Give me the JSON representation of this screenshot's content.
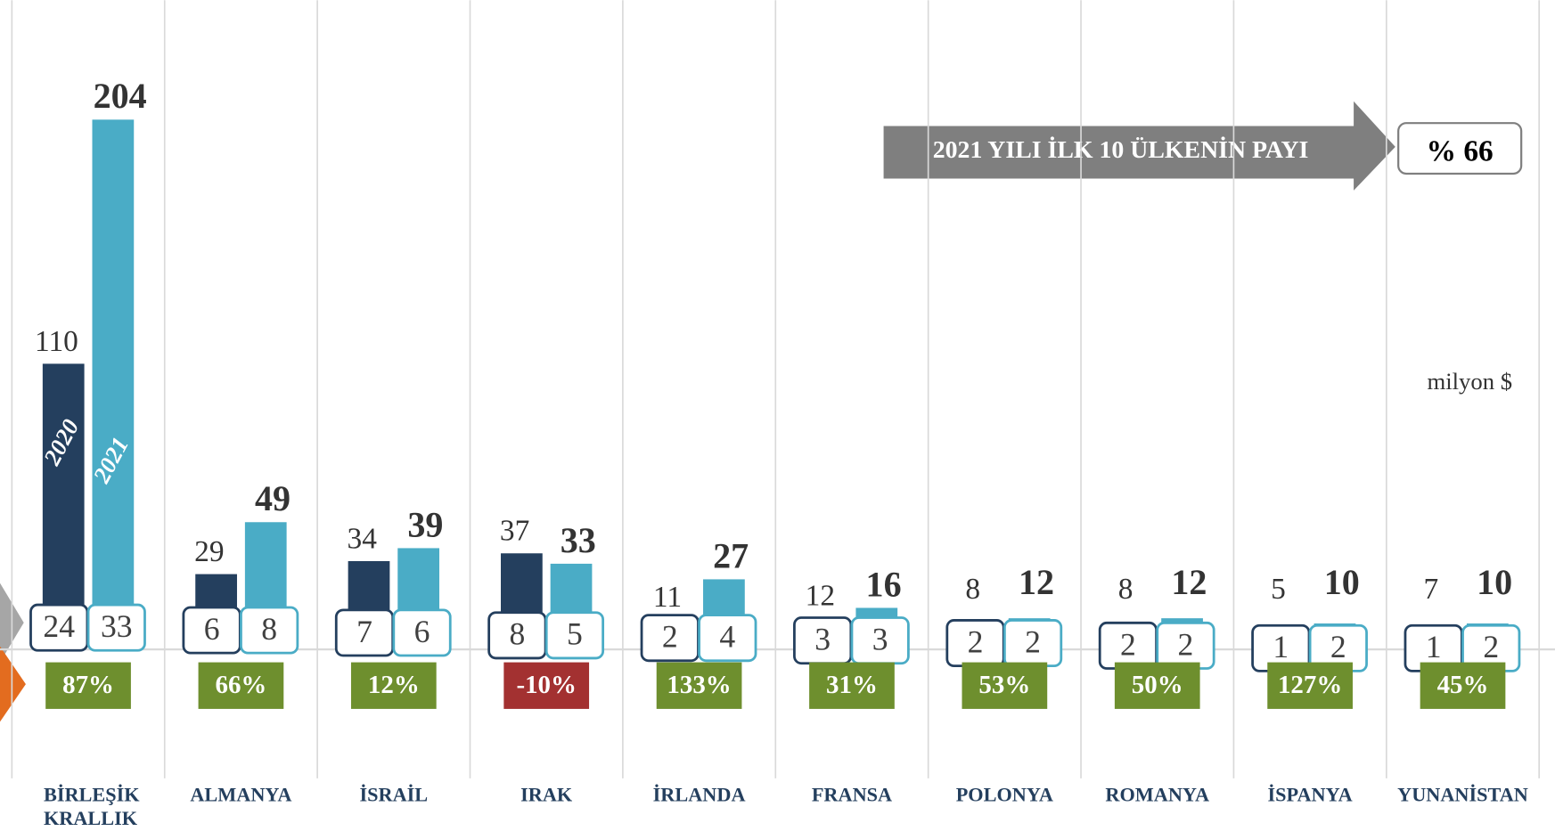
{
  "chart_data": {
    "type": "bar",
    "categories": [
      "BİRLEŞİK KRALLIK",
      "ALMANYA",
      "İSRAİL",
      "IRAK",
      "İRLANDA",
      "FRANSA",
      "POLONYA",
      "ROMANYA",
      "İSPANYA",
      "YUNANİSTAN"
    ],
    "series": [
      {
        "name": "2020",
        "color": "#243f5e",
        "values": [
          110,
          29,
          34,
          37,
          11,
          12,
          8,
          8,
          5,
          7
        ],
        "box_values": [
          24,
          6,
          7,
          8,
          2,
          3,
          2,
          2,
          1,
          1
        ]
      },
      {
        "name": "2021",
        "color": "#4aacc6",
        "values": [
          204,
          49,
          39,
          33,
          27,
          16,
          12,
          12,
          10,
          10
        ],
        "box_values": [
          33,
          8,
          6,
          5,
          4,
          3,
          2,
          2,
          2,
          2
        ]
      }
    ],
    "change": {
      "values": [
        87,
        66,
        12,
        -10,
        133,
        31,
        53,
        50,
        127,
        45
      ],
      "value_labels": [
        "87%",
        "66%",
        "12%",
        "-10%",
        "133%",
        "31%",
        "53%",
        "50%",
        "127%",
        "45%"
      ],
      "positive_color": "#6e8f2e",
      "negative_color": "#a33131"
    },
    "annotation": "2021 YILI İLK 10 ÜLKENİN PAYI",
    "share_label": "% 66",
    "unit": "milyon $",
    "ylim": [
      0,
      250
    ]
  }
}
